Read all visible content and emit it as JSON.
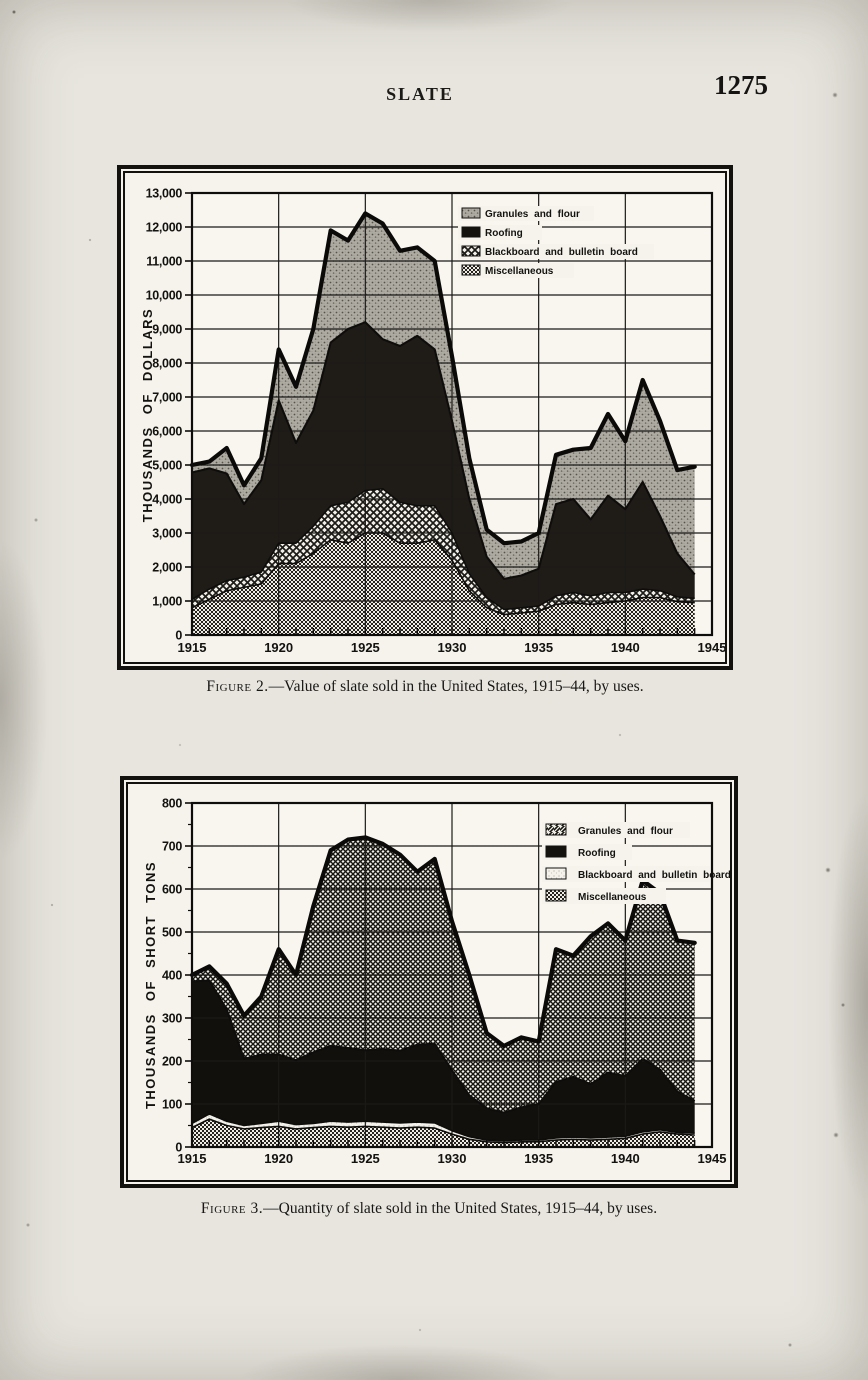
{
  "page": {
    "header_title": "SLATE",
    "page_number": "1275"
  },
  "figure2": {
    "caption_prefix": "Figure 2.",
    "caption_rest": "—Value of slate sold in the United States, 1915–44, by uses.",
    "y_axis_title": "THOUSANDS OF DOLLARS",
    "legend": [
      "Granules and flour",
      "Roofing",
      "Blackboard and bulletin board",
      "Miscellaneous"
    ]
  },
  "figure3": {
    "caption_prefix": "Figure 3.",
    "caption_rest": "—Quantity of slate sold in the United States, 1915–44, by uses.",
    "y_axis_title": "THOUSANDS OF SHORT TONS",
    "legend": [
      "Granules and flour",
      "Roofing",
      "Blackboard and bulletin board",
      "Miscellaneous"
    ]
  },
  "chart_data": [
    {
      "type": "area",
      "stacked": true,
      "title": "Figure 2.—Value of slate sold in the United States, 1915–44, by uses.",
      "xlabel": "",
      "ylabel": "THOUSANDS OF DOLLARS",
      "ylim": [
        0,
        13000
      ],
      "y_tick_step": 1000,
      "y_tick_labels": [
        "0",
        "1,000",
        "2,000",
        "3,000",
        "4,000",
        "5,000",
        "6,000",
        "7,000",
        "8,000",
        "9,000",
        "10,000",
        "11,000",
        "12,000",
        "13,000"
      ],
      "x_ticks": [
        1915,
        1920,
        1925,
        1930,
        1935,
        1940,
        1945
      ],
      "x_tick_labels": [
        "1915",
        "1920",
        "1925",
        "1930",
        "1935",
        "1940",
        "1945"
      ],
      "grid": true,
      "legend_position": "upper right inside",
      "stack_order": "bottom to top",
      "x": [
        1915,
        1916,
        1917,
        1918,
        1919,
        1920,
        1921,
        1922,
        1923,
        1924,
        1925,
        1926,
        1927,
        1928,
        1929,
        1930,
        1931,
        1932,
        1933,
        1934,
        1935,
        1936,
        1937,
        1938,
        1939,
        1940,
        1941,
        1942,
        1943,
        1944
      ],
      "series": [
        {
          "name": "Miscellaneous",
          "fill_pattern": "fine-checker",
          "values": [
            800,
            1050,
            1300,
            1400,
            1500,
            2100,
            2100,
            2400,
            2800,
            2700,
            3000,
            3000,
            2700,
            2700,
            2800,
            2200,
            1300,
            800,
            600,
            650,
            700,
            900,
            950,
            900,
            950,
            1000,
            1100,
            1100,
            980,
            950
          ]
        },
        {
          "name": "Blackboard and bulletin board",
          "fill_pattern": "waffle-mesh",
          "values": [
            250,
            300,
            300,
            300,
            350,
            600,
            600,
            800,
            1000,
            1200,
            1250,
            1300,
            1200,
            1100,
            1000,
            800,
            500,
            300,
            150,
            150,
            150,
            250,
            300,
            250,
            300,
            250,
            250,
            200,
            140,
            130
          ]
        },
        {
          "name": "Roofing",
          "fill_pattern": "solid-black",
          "values": [
            3730,
            3550,
            3150,
            2150,
            2700,
            4200,
            2950,
            3400,
            4800,
            5100,
            4950,
            4400,
            4600,
            5000,
            4600,
            3300,
            2200,
            1200,
            900,
            950,
            1100,
            2700,
            2750,
            2250,
            2850,
            2450,
            3150,
            2200,
            1280,
            700
          ]
        },
        {
          "name": "Granules and flour",
          "fill_pattern": "gray-stipple",
          "values": [
            220,
            200,
            750,
            550,
            650,
            1500,
            1650,
            2400,
            3300,
            2600,
            3200,
            3400,
            2800,
            2600,
            2600,
            1900,
            1200,
            800,
            1050,
            1000,
            1050,
            1450,
            1450,
            2100,
            2400,
            2000,
            3000,
            2800,
            2450,
            3170
          ]
        }
      ]
    },
    {
      "type": "area",
      "stacked": true,
      "title": "Figure 3.—Quantity of slate sold in the United States, 1915–44, by uses.",
      "xlabel": "",
      "ylabel": "THOUSANDS OF SHORT TONS",
      "ylim": [
        0,
        800
      ],
      "y_tick_step": 100,
      "y_tick_labels": [
        "0",
        "100",
        "200",
        "300",
        "400",
        "500",
        "600",
        "700",
        "800"
      ],
      "x_ticks": [
        1915,
        1920,
        1925,
        1930,
        1935,
        1940,
        1945
      ],
      "x_tick_labels": [
        "1915",
        "1920",
        "1925",
        "1930",
        "1935",
        "1940",
        "1945"
      ],
      "grid": true,
      "legend_position": "upper right inside",
      "stack_order": "bottom to top",
      "x": [
        1915,
        1916,
        1917,
        1918,
        1919,
        1920,
        1921,
        1922,
        1923,
        1924,
        1925,
        1926,
        1927,
        1928,
        1929,
        1930,
        1931,
        1932,
        1933,
        1934,
        1935,
        1936,
        1937,
        1938,
        1939,
        1940,
        1941,
        1942,
        1943,
        1944
      ],
      "series": [
        {
          "name": "Miscellaneous",
          "fill_pattern": "fine-checker",
          "values": [
            45,
            65,
            50,
            42,
            45,
            48,
            42,
            45,
            48,
            46,
            48,
            46,
            44,
            46,
            44,
            30,
            18,
            12,
            10,
            12,
            12,
            16,
            18,
            16,
            18,
            20,
            30,
            35,
            30,
            28
          ]
        },
        {
          "name": "Blackboard and bulletin board",
          "fill_pattern": "light-stipple",
          "values": [
            10,
            12,
            10,
            8,
            10,
            12,
            10,
            10,
            12,
            12,
            12,
            12,
            12,
            12,
            12,
            8,
            6,
            4,
            4,
            4,
            4,
            5,
            5,
            5,
            5,
            5,
            5,
            5,
            4,
            4
          ]
        },
        {
          "name": "Roofing",
          "fill_pattern": "solid-black",
          "values": [
            330,
            310,
            260,
            155,
            160,
            155,
            150,
            165,
            175,
            172,
            165,
            170,
            168,
            180,
            184,
            140,
            96,
            74,
            66,
            76,
            84,
            130,
            140,
            125,
            150,
            140,
            170,
            140,
            95,
            75
          ]
        },
        {
          "name": "Granules and flour",
          "fill_pattern": "diagonal-mesh",
          "values": [
            15,
            33,
            60,
            100,
            135,
            245,
            198,
            340,
            455,
            485,
            495,
            477,
            456,
            402,
            430,
            347,
            280,
            175,
            155,
            163,
            145,
            309,
            282,
            344,
            347,
            315,
            415,
            410,
            351,
            368
          ]
        }
      ]
    }
  ]
}
